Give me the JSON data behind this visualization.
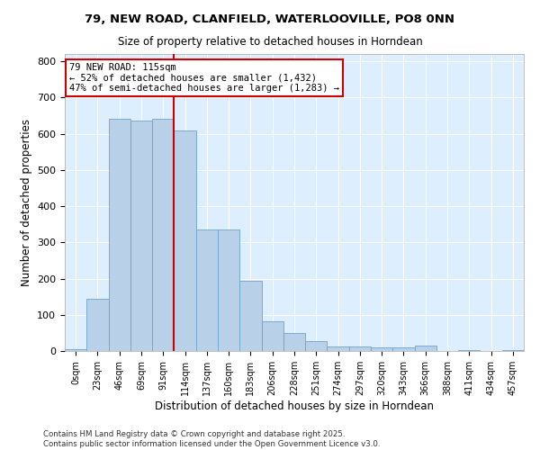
{
  "title_line1": "79, NEW ROAD, CLANFIELD, WATERLOOVILLE, PO8 0NN",
  "title_line2": "Size of property relative to detached houses in Horndean",
  "xlabel": "Distribution of detached houses by size in Horndean",
  "ylabel": "Number of detached properties",
  "bar_color": "#b8d0e8",
  "bar_edge_color": "#6da3cc",
  "background_color": "#ddeeff",
  "grid_color": "#ffffff",
  "annotation_box_edgecolor": "#cc0000",
  "property_line_color": "#cc0000",
  "categories": [
    "0sqm",
    "23sqm",
    "46sqm",
    "69sqm",
    "91sqm",
    "114sqm",
    "137sqm",
    "160sqm",
    "183sqm",
    "206sqm",
    "228sqm",
    "251sqm",
    "274sqm",
    "297sqm",
    "320sqm",
    "343sqm",
    "366sqm",
    "388sqm",
    "411sqm",
    "434sqm",
    "457sqm"
  ],
  "values": [
    5,
    145,
    640,
    635,
    640,
    610,
    335,
    335,
    195,
    83,
    50,
    27,
    13,
    13,
    10,
    10,
    15,
    0,
    2,
    0,
    2
  ],
  "property_line_x": 5.0,
  "annotation_text": "79 NEW ROAD: 115sqm\n← 52% of detached houses are smaller (1,432)\n47% of semi-detached houses are larger (1,283) →",
  "footer_text": "Contains HM Land Registry data © Crown copyright and database right 2025.\nContains public sector information licensed under the Open Government Licence v3.0.",
  "ylim": [
    0,
    820
  ],
  "yticks": [
    0,
    100,
    200,
    300,
    400,
    500,
    600,
    700,
    800
  ],
  "bar_width": 1.0,
  "fig_width": 6.0,
  "fig_height": 5.0,
  "fig_dpi": 100
}
